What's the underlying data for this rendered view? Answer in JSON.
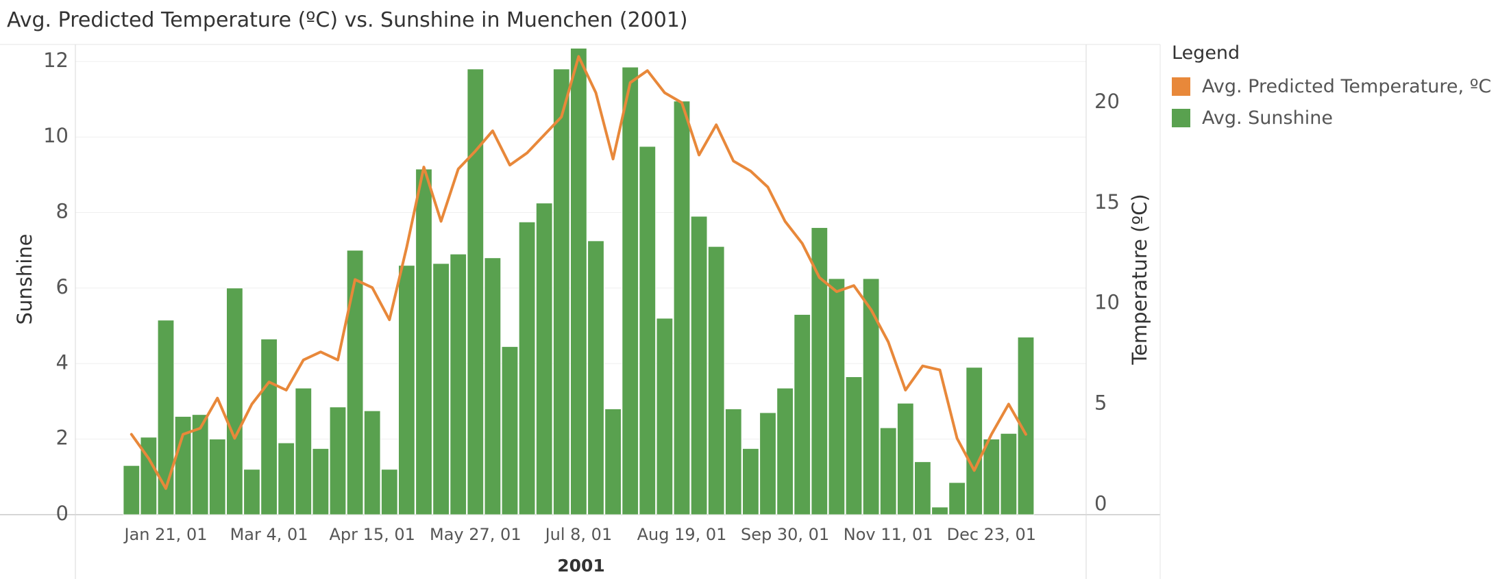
{
  "chart_data": {
    "type": "bar+line",
    "title": "Avg. Predicted Temperature (ºC) vs. Sunshine in Muenchen (2001)",
    "xlabel": "2001",
    "ylabel_left": "Sunshine",
    "ylabel_right": "Temperature (ºC)",
    "ylim_left": [
      0,
      12.45
    ],
    "ylim_right": [
      -0.5,
      22.9
    ],
    "yticks_left": [
      0,
      2,
      4,
      6,
      8,
      10,
      12
    ],
    "yticks_right": [
      0,
      5,
      10,
      15,
      20
    ],
    "x_tick_labels": [
      "Jan 21, 01",
      "Mar 4, 01",
      "Apr 15, 01",
      "May 27, 01",
      "Jul 8, 01",
      "Aug 19, 01",
      "Sep 30, 01",
      "Nov 11, 01",
      "Dec 23, 01"
    ],
    "x_tick_week_index": [
      2,
      8,
      14,
      20,
      26,
      32,
      38,
      44,
      50
    ],
    "legend": {
      "title": "Legend",
      "position": "right",
      "items": [
        {
          "label": "Avg. Predicted Temperature, ºC",
          "color": "#e8883a"
        },
        {
          "label": "Avg. Sunshine",
          "color": "#59a14f"
        }
      ]
    },
    "series": [
      {
        "name": "Avg. Sunshine",
        "kind": "bar",
        "axis": "left",
        "color": "#59a14f",
        "values": [
          1.3,
          2.05,
          5.15,
          2.6,
          2.65,
          2.0,
          6.0,
          1.2,
          4.65,
          1.9,
          3.35,
          1.75,
          2.85,
          7.0,
          2.75,
          1.2,
          6.6,
          9.15,
          6.65,
          6.9,
          11.8,
          6.8,
          4.45,
          7.75,
          8.25,
          11.8,
          12.35,
          7.25,
          2.8,
          11.85,
          9.75,
          5.2,
          10.95,
          7.9,
          7.1,
          2.8,
          1.75,
          2.7,
          3.35,
          5.3,
          7.6,
          6.25,
          3.65,
          6.25,
          2.3,
          2.95,
          1.4,
          0.2,
          0.85,
          3.9,
          2.0,
          2.15,
          4.7
        ]
      },
      {
        "name": "Avg. Predicted Temperature, ºC",
        "kind": "line",
        "axis": "right",
        "color": "#e8883a",
        "values": [
          3.5,
          2.3,
          0.8,
          3.5,
          3.8,
          5.3,
          3.3,
          5.0,
          6.1,
          5.7,
          7.2,
          7.6,
          7.2,
          11.2,
          10.8,
          9.2,
          12.8,
          16.8,
          14.1,
          16.7,
          17.6,
          18.6,
          16.9,
          17.5,
          18.4,
          19.3,
          22.3,
          20.5,
          17.2,
          21.0,
          21.6,
          20.5,
          20.0,
          17.4,
          18.9,
          17.1,
          16.6,
          15.8,
          14.1,
          13.0,
          11.3,
          10.6,
          10.9,
          9.7,
          8.1,
          5.7,
          6.9,
          6.7,
          3.3,
          1.7,
          3.5,
          5.0,
          3.5
        ]
      }
    ]
  }
}
